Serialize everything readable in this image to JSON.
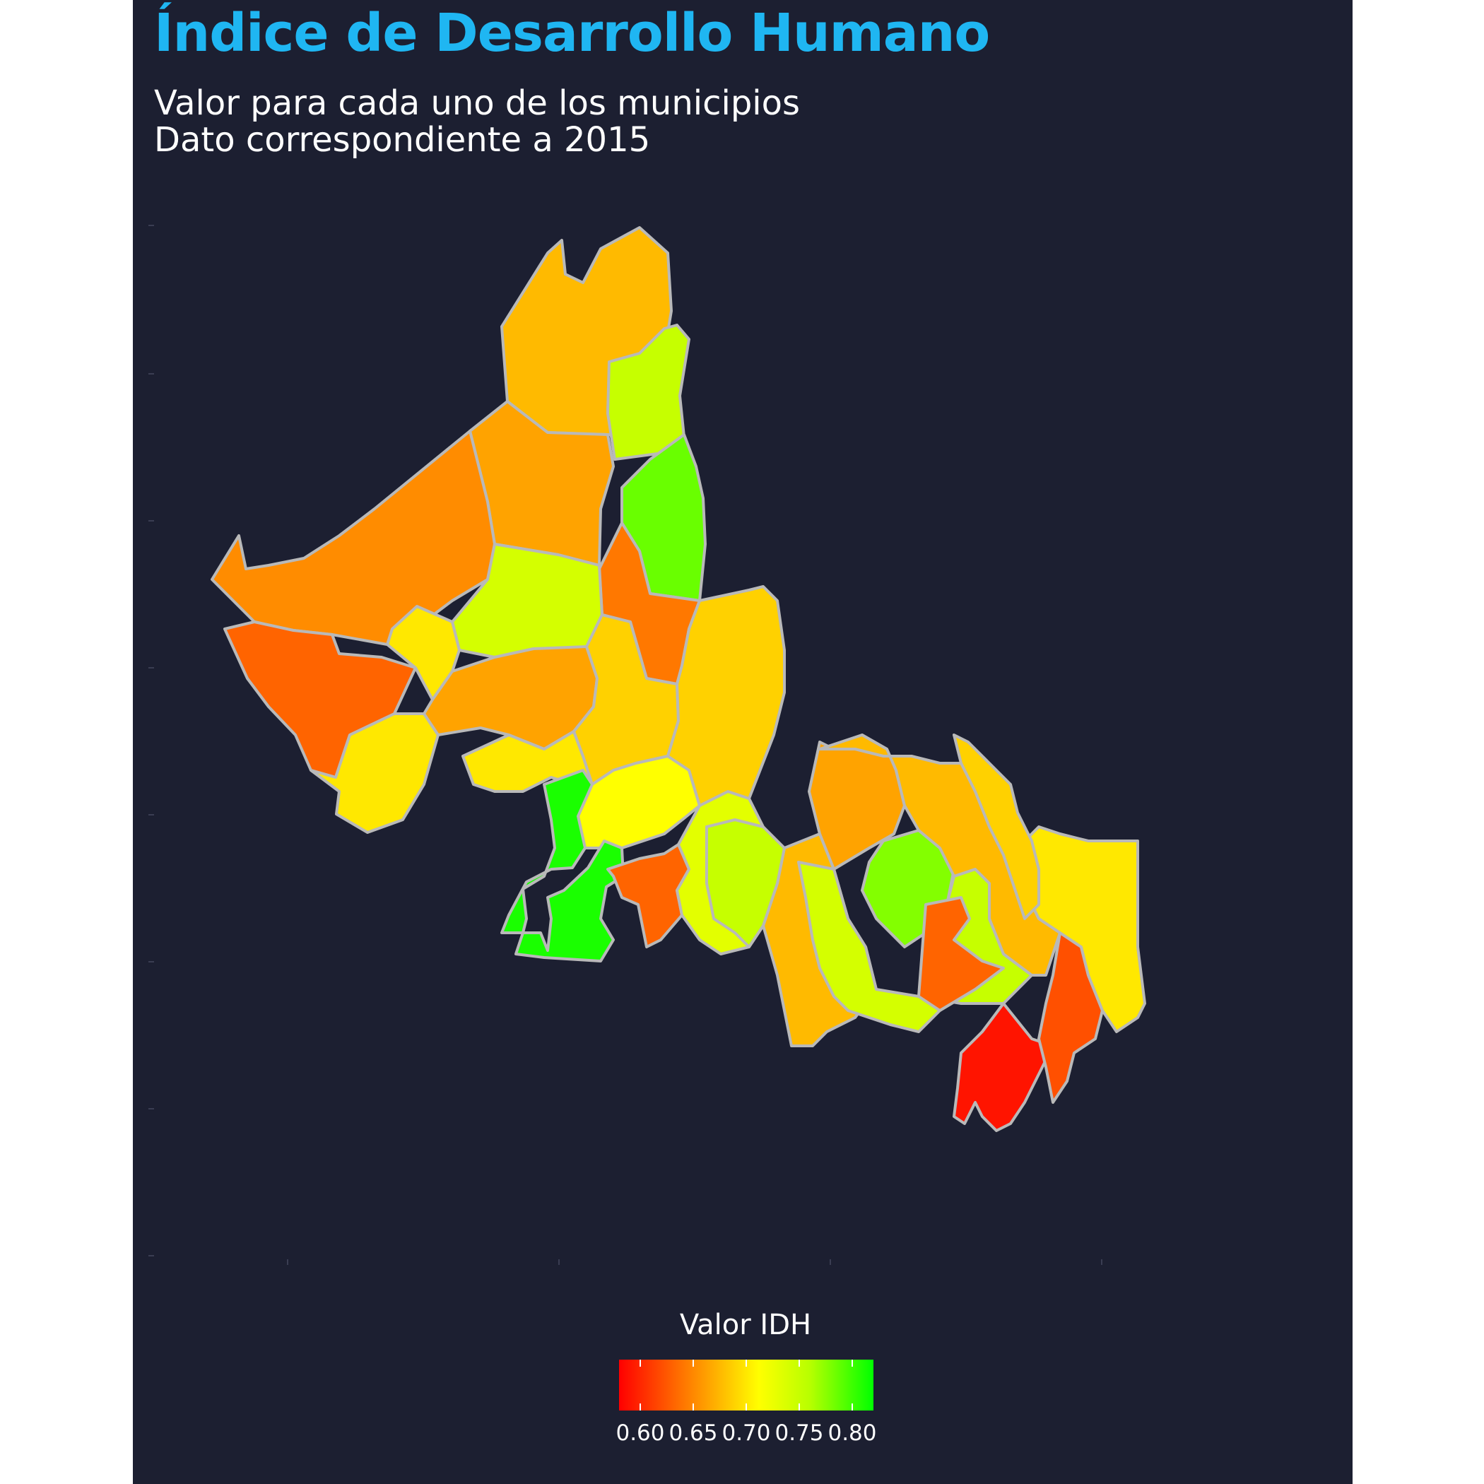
{
  "title": "Índice de Desarrollo Humano",
  "subtitle_line1": "Valor para cada uno de los municipios",
  "subtitle_line2": "Dato correspondiente a 2015",
  "legend": {
    "title": "Valor IDH",
    "tick_labels": [
      "0.60",
      "0.65",
      "0.70",
      "0.75",
      "0.80"
    ],
    "scale_colors": [
      "#ff0000",
      "#ff8c00",
      "#ffff00",
      "#b8ff00",
      "#00ff00"
    ]
  },
  "colors": {
    "background": "#1c1f31",
    "title": "#1fb6f2",
    "border": "#b9b9b9"
  },
  "chart_data": {
    "type": "choropleth",
    "variable": "Valor IDH",
    "year": "2015",
    "value_range": [
      0.58,
      0.82
    ],
    "regions": [
      {
        "id": "m01",
        "value": 0.67
      },
      {
        "id": "m02",
        "value": 0.74
      },
      {
        "id": "m03",
        "value": 0.78
      },
      {
        "id": "m04",
        "value": 0.66
      },
      {
        "id": "m05",
        "value": 0.65
      },
      {
        "id": "m06",
        "value": 0.63
      },
      {
        "id": "m07",
        "value": 0.64
      },
      {
        "id": "m08",
        "value": 0.73
      },
      {
        "id": "m09",
        "value": 0.69
      },
      {
        "id": "m10",
        "value": 0.69
      },
      {
        "id": "m11",
        "value": 0.66
      },
      {
        "id": "m12",
        "value": 0.69
      },
      {
        "id": "m13",
        "value": 0.68
      },
      {
        "id": "m14",
        "value": 0.7
      },
      {
        "id": "m15",
        "value": 0.81
      },
      {
        "id": "m16",
        "value": 0.63
      },
      {
        "id": "m17",
        "value": 0.72
      },
      {
        "id": "m18",
        "value": 0.67
      },
      {
        "id": "m19",
        "value": 0.68
      },
      {
        "id": "m20",
        "value": 0.66
      },
      {
        "id": "m21",
        "value": 0.74
      },
      {
        "id": "m22",
        "value": 0.77
      },
      {
        "id": "m23",
        "value": 0.73
      },
      {
        "id": "m24",
        "value": 0.74
      },
      {
        "id": "m25",
        "value": 0.63
      },
      {
        "id": "m26",
        "value": 0.67
      },
      {
        "id": "m27",
        "value": 0.59
      },
      {
        "id": "m28",
        "value": 0.62
      },
      {
        "id": "m29",
        "value": 0.69
      },
      {
        "id": "m30",
        "value": 0.68
      }
    ]
  }
}
